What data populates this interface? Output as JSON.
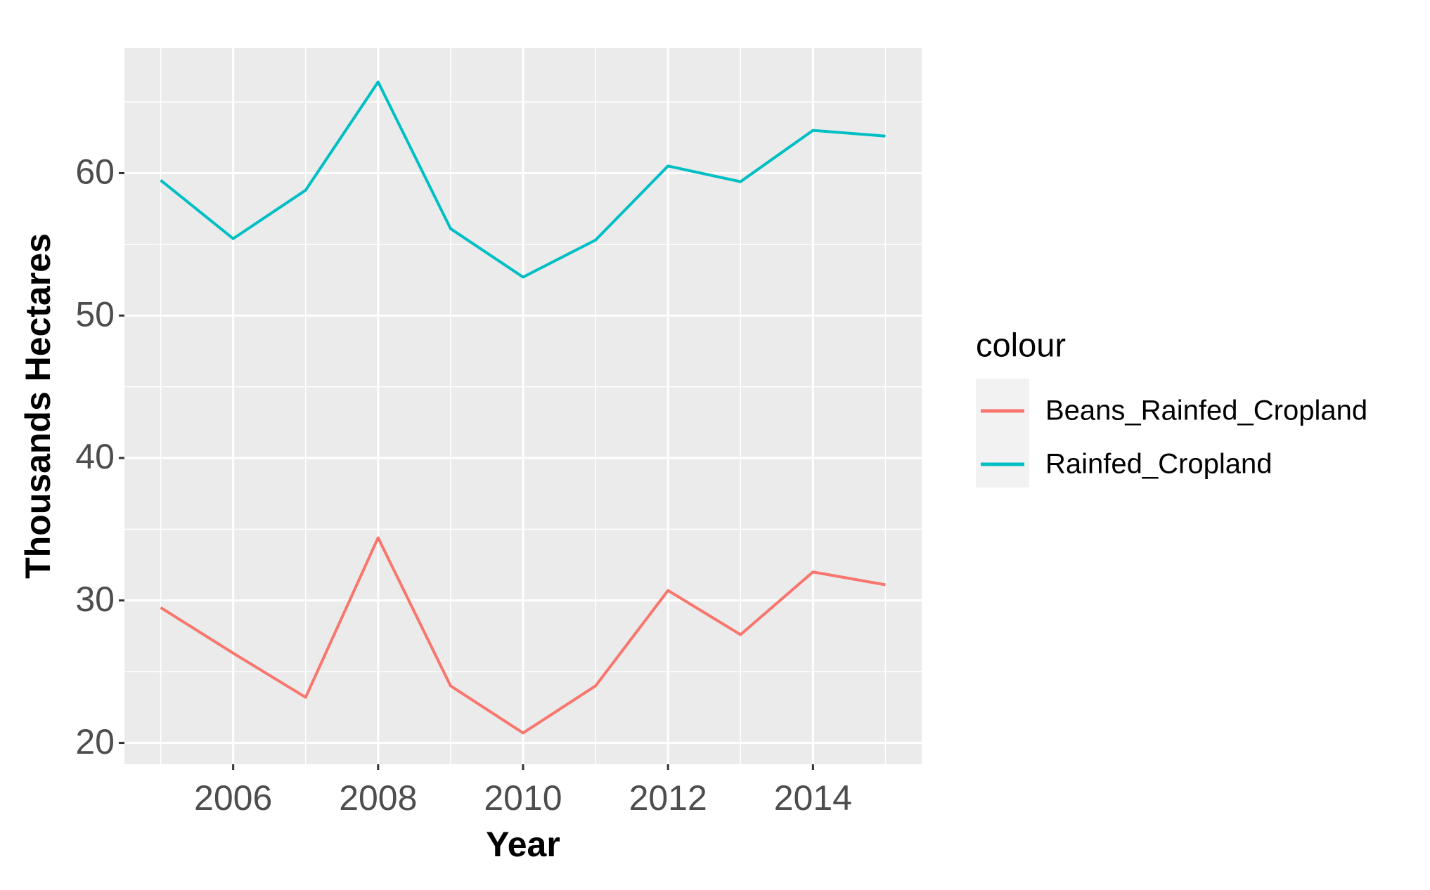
{
  "chart_data": {
    "type": "line",
    "x_label": "Year",
    "y_label": "Thousands Hectares",
    "x": [
      2005,
      2006,
      2007,
      2008,
      2009,
      2010,
      2011,
      2012,
      2013,
      2014,
      2015
    ],
    "series": [
      {
        "name": "Beans_Rainfed_Cropland",
        "color": "#f8766d",
        "values": [
          29.5,
          26.3,
          23.2,
          34.4,
          24.0,
          20.7,
          24.0,
          30.7,
          27.6,
          32.0,
          31.1
        ]
      },
      {
        "name": "Rainfed_Cropland",
        "color": "#00bfc4",
        "values": [
          59.5,
          55.4,
          58.8,
          66.4,
          56.1,
          52.7,
          55.3,
          60.5,
          59.4,
          63.0,
          62.6
        ]
      }
    ],
    "xlim": [
      2004.5,
      2015.5
    ],
    "xticks": [
      2006,
      2008,
      2010,
      2012,
      2014
    ],
    "ylim": [
      18.5,
      68.8
    ],
    "yticks": [
      20,
      30,
      40,
      50,
      60
    ],
    "grid": true,
    "legend": "right",
    "legend_title": "colour"
  }
}
